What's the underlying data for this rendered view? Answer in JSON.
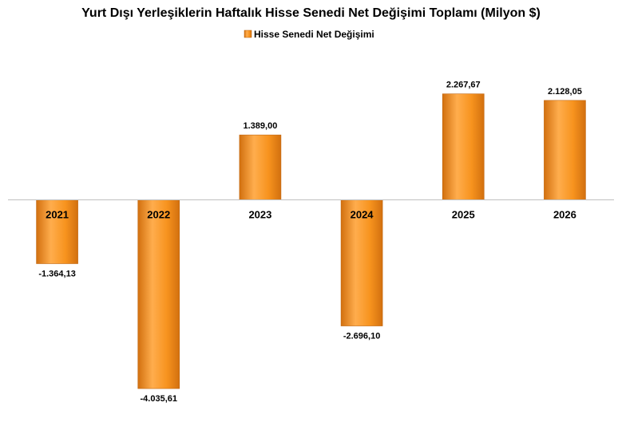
{
  "colors": {
    "bar_light": "#ffad4d",
    "bar_mid": "#f7931e",
    "bar_dark": "#d2700f",
    "axis": "#bfbfbf"
  },
  "chart_data": {
    "type": "bar",
    "title": "Yurt Dışı Yerleşiklerin Haftalık Hisse Senedi Net Değişimi Toplamı (Milyon $)",
    "legend_position": "top",
    "grid": false,
    "categories": [
      "2021",
      "2022",
      "2023",
      "2024",
      "2025",
      "2026"
    ],
    "series": [
      {
        "name": "Hisse Senedi Net Değişimi",
        "values": [
          -1364.13,
          -4035.61,
          1389.0,
          -2696.1,
          2267.67,
          2128.05
        ],
        "labels": [
          "-1.364,13",
          "-4.035,61",
          "1.389,00",
          "-2.696,10",
          "2.267,67",
          "2.128,05"
        ]
      }
    ],
    "ylim": [
      -4700,
      3200
    ]
  }
}
